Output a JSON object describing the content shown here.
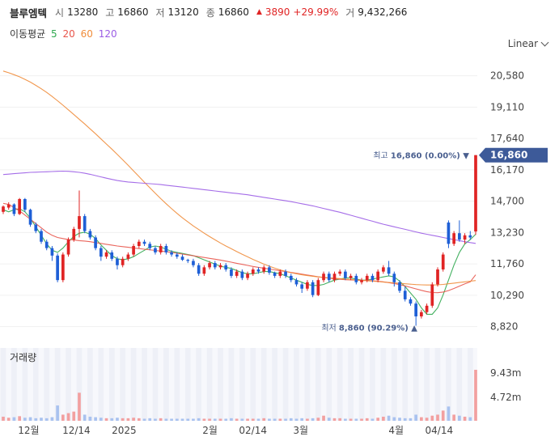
{
  "header": {
    "name": "블루엠텍",
    "open_label": "시",
    "open": "13280",
    "high_label": "고",
    "high": "16860",
    "low_label": "저",
    "low": "13120",
    "close_label": "종",
    "close": "16860",
    "change_icon": "triangle-up-icon",
    "change": "3890",
    "change_pct": "+29.99%",
    "volume_label": "거",
    "volume": "9,432,266"
  },
  "ma_legend": {
    "title": "이동평균",
    "items": [
      {
        "label": "5",
        "color": "#2fa84f"
      },
      {
        "label": "20",
        "color": "#e8544a"
      },
      {
        "label": "60",
        "color": "#f08c3a"
      },
      {
        "label": "120",
        "color": "#9b5de5"
      }
    ]
  },
  "scale_mode": "Linear",
  "volume_label": "거래량",
  "colors": {
    "up": "#e02424",
    "down": "#1e5fd6",
    "current": "#3d5a99"
  },
  "chart_data": {
    "type": "candlestick",
    "price_axis": {
      "ticks": [
        "20,580",
        "19,110",
        "17,640",
        "16,170",
        "14,700",
        "13,230",
        "11,760",
        "10,290",
        "8,820"
      ],
      "range": [
        8200,
        21400
      ]
    },
    "volume_axis": {
      "ticks": [
        "9.43m",
        "4.72m"
      ]
    },
    "x_ticks": [
      "12월",
      "12/14",
      "2025",
      "2월",
      "02/14",
      "3월",
      "4월",
      "04/14"
    ],
    "current_price": "16,860",
    "high_annotation": {
      "label": "최고",
      "value": "16,860 (0.00%)",
      "price": 16860
    },
    "low_annotation": {
      "label": "최저",
      "value": "8,860 (90.29%)",
      "price": 8860
    },
    "series": [
      {
        "name": "5",
        "color": "#2fa84f",
        "values": [
          14300,
          14200,
          14300,
          14350,
          14200,
          13900,
          13500,
          13100,
          12700,
          12400,
          12300,
          12500,
          12800,
          13050,
          13200,
          13250,
          13150,
          12950,
          12650,
          12400,
          12150,
          12000,
          11950,
          12000,
          12100,
          12250,
          12400,
          12550,
          12600,
          12550,
          12450,
          12350,
          12300,
          12250,
          12200,
          12150,
          12050,
          11950,
          11850,
          11750,
          11650,
          11600,
          11550,
          11450,
          11350,
          11300,
          11300,
          11350,
          11400,
          11400,
          11350,
          11300,
          11200,
          11100,
          11000,
          10900,
          10800,
          10750,
          10750,
          10800,
          10900,
          11000,
          11050,
          11100,
          11100,
          11050,
          11000,
          11000,
          11050,
          11100,
          11150,
          11200,
          11150,
          10950,
          10700,
          10400,
          10100,
          9700,
          9400,
          9400,
          9700,
          10300,
          11000,
          11700,
          12300,
          12700,
          12900,
          13150
        ]
      },
      {
        "name": "20",
        "color": "#e8544a",
        "values": [
          14600,
          14550,
          14400,
          14250,
          14050,
          13850,
          13650,
          13450,
          13250,
          13100,
          13000,
          12950,
          12900,
          12880,
          12850,
          12830,
          12800,
          12760,
          12720,
          12680,
          12640,
          12600,
          12570,
          12540,
          12510,
          12480,
          12450,
          12420,
          12390,
          12360,
          12330,
          12300,
          12260,
          12220,
          12180,
          12140,
          12100,
          12060,
          12020,
          11980,
          11940,
          11890,
          11840,
          11790,
          11740,
          11690,
          11640,
          11600,
          11560,
          11520,
          11480,
          11440,
          11400,
          11360,
          11320,
          11280,
          11240,
          11200,
          11160,
          11120,
          11090,
          11060,
          11040,
          11020,
          11010,
          11000,
          10990,
          10980,
          10970,
          10950,
          10920,
          10880,
          10840,
          10790,
          10730,
          10660,
          10590,
          10520,
          10460,
          10420,
          10410,
          10440,
          10510,
          10610,
          10720,
          10830,
          10920,
          11250
        ]
      },
      {
        "name": "60",
        "color": "#f08c3a",
        "values": [
          20800,
          20720,
          20630,
          20530,
          20410,
          20280,
          20130,
          19970,
          19800,
          19610,
          19410,
          19200,
          18980,
          18760,
          18540,
          18320,
          18090,
          17860,
          17620,
          17380,
          17140,
          16890,
          16640,
          16380,
          16120,
          15860,
          15590,
          15330,
          15070,
          14820,
          14580,
          14350,
          14130,
          13920,
          13730,
          13540,
          13370,
          13200,
          13040,
          12890,
          12740,
          12600,
          12470,
          12340,
          12210,
          12090,
          11970,
          11860,
          11750,
          11650,
          11560,
          11480,
          11410,
          11350,
          11300,
          11250,
          11210,
          11180,
          11150,
          11130,
          11110,
          11090,
          11070,
          11050,
          11030,
          11010,
          10990,
          10970,
          10950,
          10930,
          10910,
          10890,
          10870,
          10850,
          10830,
          10810,
          10790,
          10780,
          10770,
          10770,
          10780,
          10800,
          10830,
          10860,
          10890,
          10920,
          10950,
          10980
        ]
      },
      {
        "name": "120",
        "color": "#9b5de5",
        "values": [
          15950,
          15970,
          15990,
          16010,
          16030,
          16050,
          16060,
          16070,
          16080,
          16090,
          16100,
          16110,
          16100,
          16080,
          16050,
          16010,
          15960,
          15900,
          15840,
          15780,
          15720,
          15670,
          15630,
          15600,
          15580,
          15560,
          15540,
          15520,
          15500,
          15480,
          15450,
          15420,
          15390,
          15360,
          15330,
          15300,
          15270,
          15240,
          15210,
          15180,
          15150,
          15120,
          15090,
          15060,
          15030,
          15000,
          14960,
          14920,
          14880,
          14840,
          14800,
          14760,
          14720,
          14680,
          14630,
          14580,
          14530,
          14480,
          14420,
          14360,
          14300,
          14240,
          14180,
          14110,
          14040,
          13970,
          13900,
          13830,
          13760,
          13690,
          13620,
          13560,
          13500,
          13440,
          13380,
          13320,
          13260,
          13200,
          13150,
          13100,
          13050,
          13000,
          12950,
          12900,
          12850,
          12800,
          12760,
          12720
        ]
      }
    ],
    "candles": [
      [
        14200,
        14450,
        14500,
        14100
      ],
      [
        14400,
        14550,
        14650,
        14300
      ],
      [
        14550,
        14100,
        14600,
        14000
      ],
      [
        14100,
        14800,
        14850,
        14050
      ],
      [
        14800,
        14300,
        14850,
        14200
      ],
      [
        14300,
        13600,
        14350,
        13500
      ],
      [
        13600,
        13300,
        13700,
        13200
      ],
      [
        13300,
        12800,
        13400,
        12700
      ],
      [
        12800,
        12500,
        12900,
        12400
      ],
      [
        12500,
        12150,
        12600,
        11900
      ],
      [
        12150,
        11000,
        12250,
        10900
      ],
      [
        11000,
        12200,
        12300,
        10900
      ],
      [
        12200,
        12900,
        13000,
        12100
      ],
      [
        12900,
        13400,
        13500,
        12800
      ],
      [
        13400,
        14000,
        15200,
        13000
      ],
      [
        14000,
        13300,
        14100,
        13200
      ],
      [
        13300,
        13000,
        13400,
        12900
      ],
      [
        13000,
        12500,
        13100,
        12400
      ],
      [
        12500,
        12100,
        12600,
        11900
      ],
      [
        12100,
        12300,
        12400,
        12000
      ],
      [
        12300,
        12000,
        12400,
        11900
      ],
      [
        12000,
        11700,
        12100,
        11500
      ],
      [
        11700,
        12000,
        12100,
        11600
      ],
      [
        12000,
        12200,
        12300,
        11900
      ],
      [
        12200,
        12600,
        12700,
        12100
      ],
      [
        12600,
        12800,
        12900,
        12500
      ],
      [
        12800,
        12700,
        12900,
        12600
      ],
      [
        12700,
        12500,
        12800,
        12400
      ],
      [
        12500,
        12300,
        12600,
        12200
      ],
      [
        12300,
        12600,
        12700,
        12200
      ],
      [
        12600,
        12300,
        12700,
        12200
      ],
      [
        12300,
        12200,
        12400,
        12100
      ],
      [
        12200,
        12100,
        12300,
        12000
      ],
      [
        12100,
        11950,
        12200,
        11900
      ],
      [
        11950,
        11900,
        12000,
        11800
      ],
      [
        11900,
        11700,
        12000,
        11600
      ],
      [
        11700,
        11300,
        11800,
        11200
      ],
      [
        11300,
        11600,
        11700,
        11200
      ],
      [
        11600,
        11800,
        11900,
        11500
      ],
      [
        11800,
        11600,
        11900,
        11500
      ],
      [
        11600,
        11700,
        11800,
        11500
      ],
      [
        11700,
        11500,
        11800,
        11400
      ],
      [
        11500,
        11200,
        11600,
        11100
      ],
      [
        11200,
        11400,
        11500,
        11100
      ],
      [
        11400,
        11100,
        11500,
        11000
      ],
      [
        11100,
        11300,
        11400,
        11000
      ],
      [
        11300,
        11500,
        11600,
        11200
      ],
      [
        11500,
        11400,
        11600,
        11300
      ],
      [
        11400,
        11600,
        11700,
        11300
      ],
      [
        11600,
        11350,
        11700,
        11250
      ],
      [
        11350,
        11200,
        11400,
        11100
      ],
      [
        11200,
        11400,
        11500,
        11100
      ],
      [
        11400,
        11200,
        11500,
        11100
      ],
      [
        11200,
        11000,
        11300,
        10900
      ],
      [
        11000,
        10800,
        11100,
        10700
      ],
      [
        10800,
        10600,
        10900,
        10400
      ],
      [
        10600,
        10900,
        11000,
        10500
      ],
      [
        10900,
        10300,
        11000,
        10200
      ],
      [
        10300,
        11000,
        11100,
        10250
      ],
      [
        11000,
        11300,
        11400,
        10900
      ],
      [
        11300,
        11000,
        11400,
        10900
      ],
      [
        11000,
        11300,
        11400,
        10900
      ],
      [
        11300,
        11400,
        11500,
        11200
      ],
      [
        11400,
        11100,
        11500,
        11000
      ],
      [
        11100,
        11200,
        11300,
        11000
      ],
      [
        11200,
        10900,
        11300,
        10800
      ],
      [
        10900,
        11000,
        11100,
        10800
      ],
      [
        11000,
        11200,
        11300,
        10900
      ],
      [
        11200,
        11000,
        11300,
        10900
      ],
      [
        11000,
        11400,
        11500,
        10900
      ],
      [
        11400,
        11600,
        11700,
        11300
      ],
      [
        11600,
        11300,
        11900,
        11200
      ],
      [
        11300,
        10900,
        11400,
        10700
      ],
      [
        10900,
        10500,
        11000,
        10400
      ],
      [
        10500,
        10100,
        10700,
        10000
      ],
      [
        10100,
        9900,
        10200,
        9800
      ],
      [
        9900,
        9300,
        10000,
        8860
      ],
      [
        9300,
        9500,
        9600,
        9200
      ],
      [
        9500,
        9800,
        9900,
        9400
      ],
      [
        9800,
        10800,
        10900,
        9700
      ],
      [
        10800,
        11500,
        11600,
        10700
      ],
      [
        11500,
        12200,
        12300,
        11400
      ],
      [
        13700,
        12700,
        13800,
        12500
      ],
      [
        12700,
        13200,
        13300,
        12600
      ],
      [
        13200,
        12900,
        13800,
        12800
      ],
      [
        12900,
        13100,
        13200,
        12700
      ],
      [
        13100,
        13000,
        13300,
        12900
      ],
      [
        13280,
        16860,
        16860,
        13120
      ]
    ],
    "volumes": [
      0.08,
      0.06,
      0.07,
      0.09,
      0.06,
      0.07,
      0.05,
      0.06,
      0.05,
      0.07,
      0.3,
      0.12,
      0.15,
      0.18,
      0.55,
      0.12,
      0.08,
      0.07,
      0.06,
      0.05,
      0.05,
      0.06,
      0.05,
      0.05,
      0.06,
      0.05,
      0.04,
      0.05,
      0.04,
      0.05,
      0.04,
      0.04,
      0.04,
      0.04,
      0.04,
      0.04,
      0.05,
      0.04,
      0.04,
      0.04,
      0.04,
      0.04,
      0.05,
      0.04,
      0.04,
      0.04,
      0.04,
      0.04,
      0.05,
      0.04,
      0.04,
      0.04,
      0.04,
      0.05,
      0.04,
      0.05,
      0.04,
      0.05,
      0.06,
      0.1,
      0.06,
      0.05,
      0.05,
      0.04,
      0.04,
      0.04,
      0.04,
      0.05,
      0.04,
      0.06,
      0.08,
      0.1,
      0.07,
      0.06,
      0.05,
      0.05,
      0.12,
      0.07,
      0.06,
      0.1,
      0.12,
      0.2,
      0.28,
      0.12,
      0.1,
      0.08,
      0.07,
      1.0
    ]
  }
}
